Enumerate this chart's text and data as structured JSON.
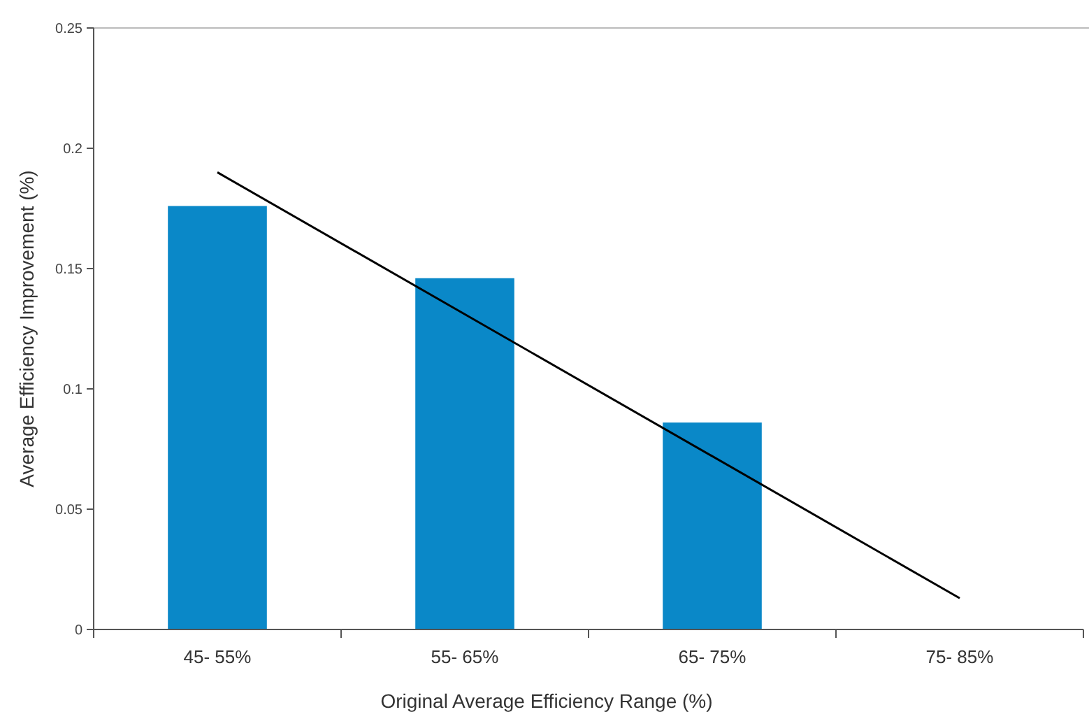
{
  "chart_data": {
    "type": "bar",
    "xlabel": "Original Average Efficiency Range (%)",
    "ylabel": "Average Efficiency Improvement (%)",
    "categories": [
      "45- 55%",
      "55- 65%",
      "65- 75%",
      "75- 85%"
    ],
    "series": [
      {
        "color": "#0a88c8",
        "values": [
          0.176,
          0.146,
          0.086,
          null
        ]
      },
      {
        "type": "line",
        "color": "#000000",
        "x": [
          "45- 55%",
          "75- 85%"
        ],
        "values": [
          0.19,
          0.013
        ]
      }
    ],
    "ylim": [
      0,
      0.25
    ],
    "yticks": [
      0,
      0.05,
      0.1,
      0.15,
      0.2,
      0.25
    ],
    "grid": false
  }
}
